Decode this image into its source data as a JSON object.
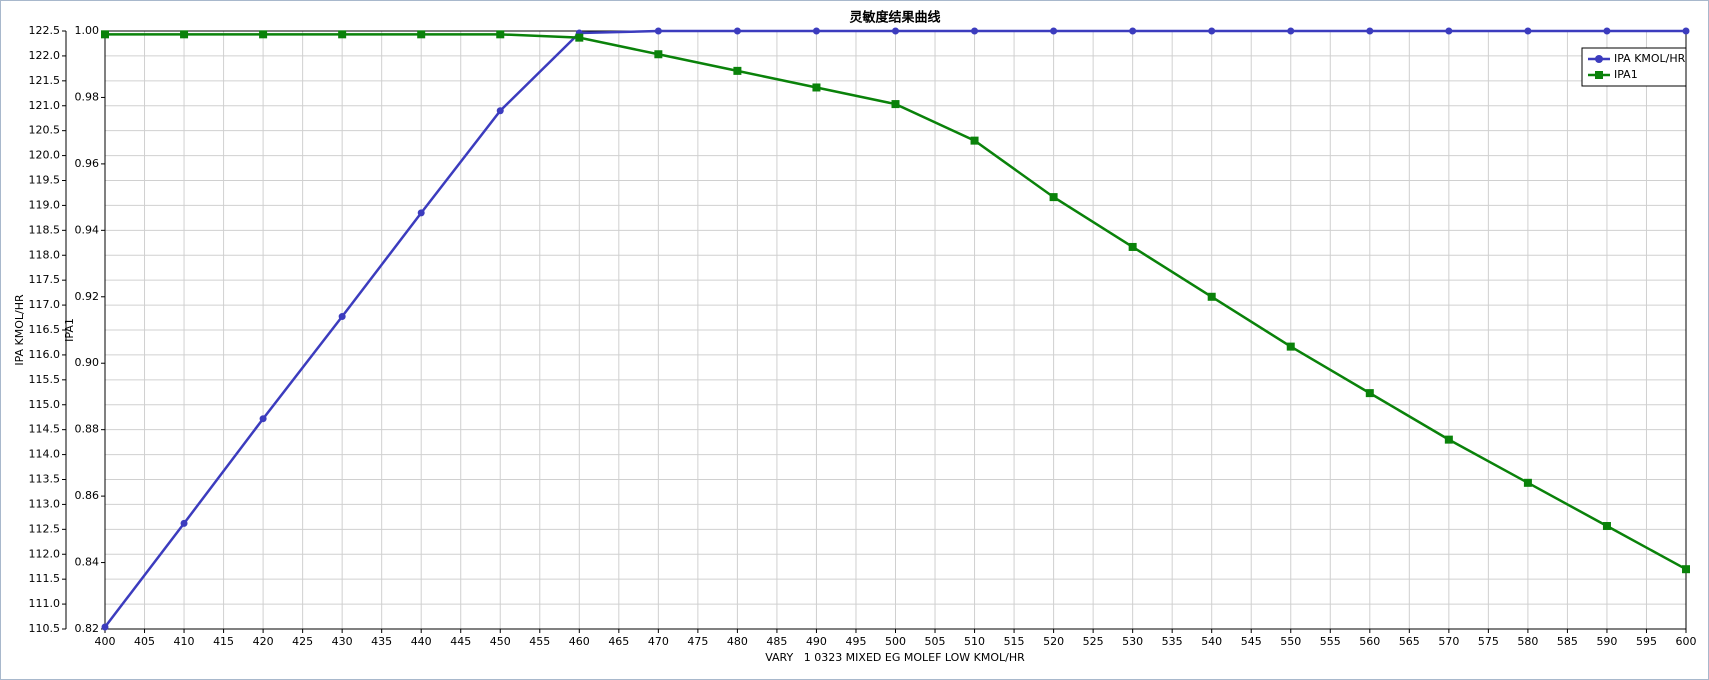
{
  "chart_data": {
    "type": "line",
    "title": "灵敏度结果曲线",
    "xlabel": "VARY   1 0323 MIXED EG MOLEF LOW KMOL/HR",
    "ylabel": "IPA KMOL/HR",
    "y2label": "IPA1",
    "x": [
      400,
      410,
      420,
      430,
      440,
      450,
      460,
      470,
      480,
      490,
      500,
      510,
      520,
      530,
      540,
      550,
      560,
      570,
      580,
      590,
      600
    ],
    "series": [
      {
        "name": "IPA KMOL/HR",
        "color": "#3c3cbe",
        "marker": "circle",
        "axis": "y",
        "values": [
          110.54,
          112.62,
          114.72,
          116.77,
          118.85,
          120.9,
          122.46,
          122.5,
          122.5,
          122.5,
          122.5,
          122.5,
          122.5,
          122.5,
          122.5,
          122.5,
          122.5,
          122.5,
          122.5,
          122.5,
          122.5
        ]
      },
      {
        "name": "IPA1",
        "color": "#0a820a",
        "marker": "square",
        "axis": "y2",
        "values": [
          0.999,
          0.999,
          0.999,
          0.999,
          0.999,
          0.999,
          0.998,
          0.993,
          0.988,
          0.983,
          0.978,
          0.967,
          0.95,
          0.935,
          0.92,
          0.905,
          0.891,
          0.877,
          0.864,
          0.851,
          0.838
        ]
      }
    ],
    "xlim": [
      400,
      600
    ],
    "xticks": [
      400,
      405,
      410,
      415,
      420,
      425,
      430,
      435,
      440,
      445,
      450,
      455,
      460,
      465,
      470,
      475,
      480,
      485,
      490,
      495,
      500,
      505,
      510,
      515,
      520,
      525,
      530,
      535,
      540,
      545,
      550,
      555,
      560,
      565,
      570,
      575,
      580,
      585,
      590,
      595,
      600
    ],
    "ylim": [
      110.5,
      122.5
    ],
    "yticks": [
      110.5,
      {
        "value": 111,
        "label": "111.0"
      },
      111.5,
      {
        "value": 112,
        "label": "112.0"
      },
      112.5,
      {
        "value": 113,
        "label": "113.0"
      },
      113.5,
      {
        "value": 114,
        "label": "114.0"
      },
      114.5,
      {
        "value": 115,
        "label": "115.0"
      },
      115.5,
      {
        "value": 116,
        "label": "116.0"
      },
      116.5,
      {
        "value": 117,
        "label": "117.0"
      },
      117.5,
      {
        "value": 118,
        "label": "118.0"
      },
      118.5,
      {
        "value": 119,
        "label": "119.0"
      },
      119.5,
      {
        "value": 120,
        "label": "120.0"
      },
      120.5,
      {
        "value": 121,
        "label": "121.0"
      },
      121.5,
      {
        "value": 122,
        "label": "122.0"
      },
      122.5
    ],
    "y2lim": [
      0.82,
      1.0
    ],
    "y2ticks": [
      0.82,
      0.84,
      0.86,
      0.88,
      {
        "value": 0.9,
        "label": "0.90"
      },
      0.92,
      0.94,
      0.96,
      0.98,
      {
        "value": 1.0,
        "label": "1.00"
      }
    ],
    "grid": true,
    "legend": "upper right"
  }
}
